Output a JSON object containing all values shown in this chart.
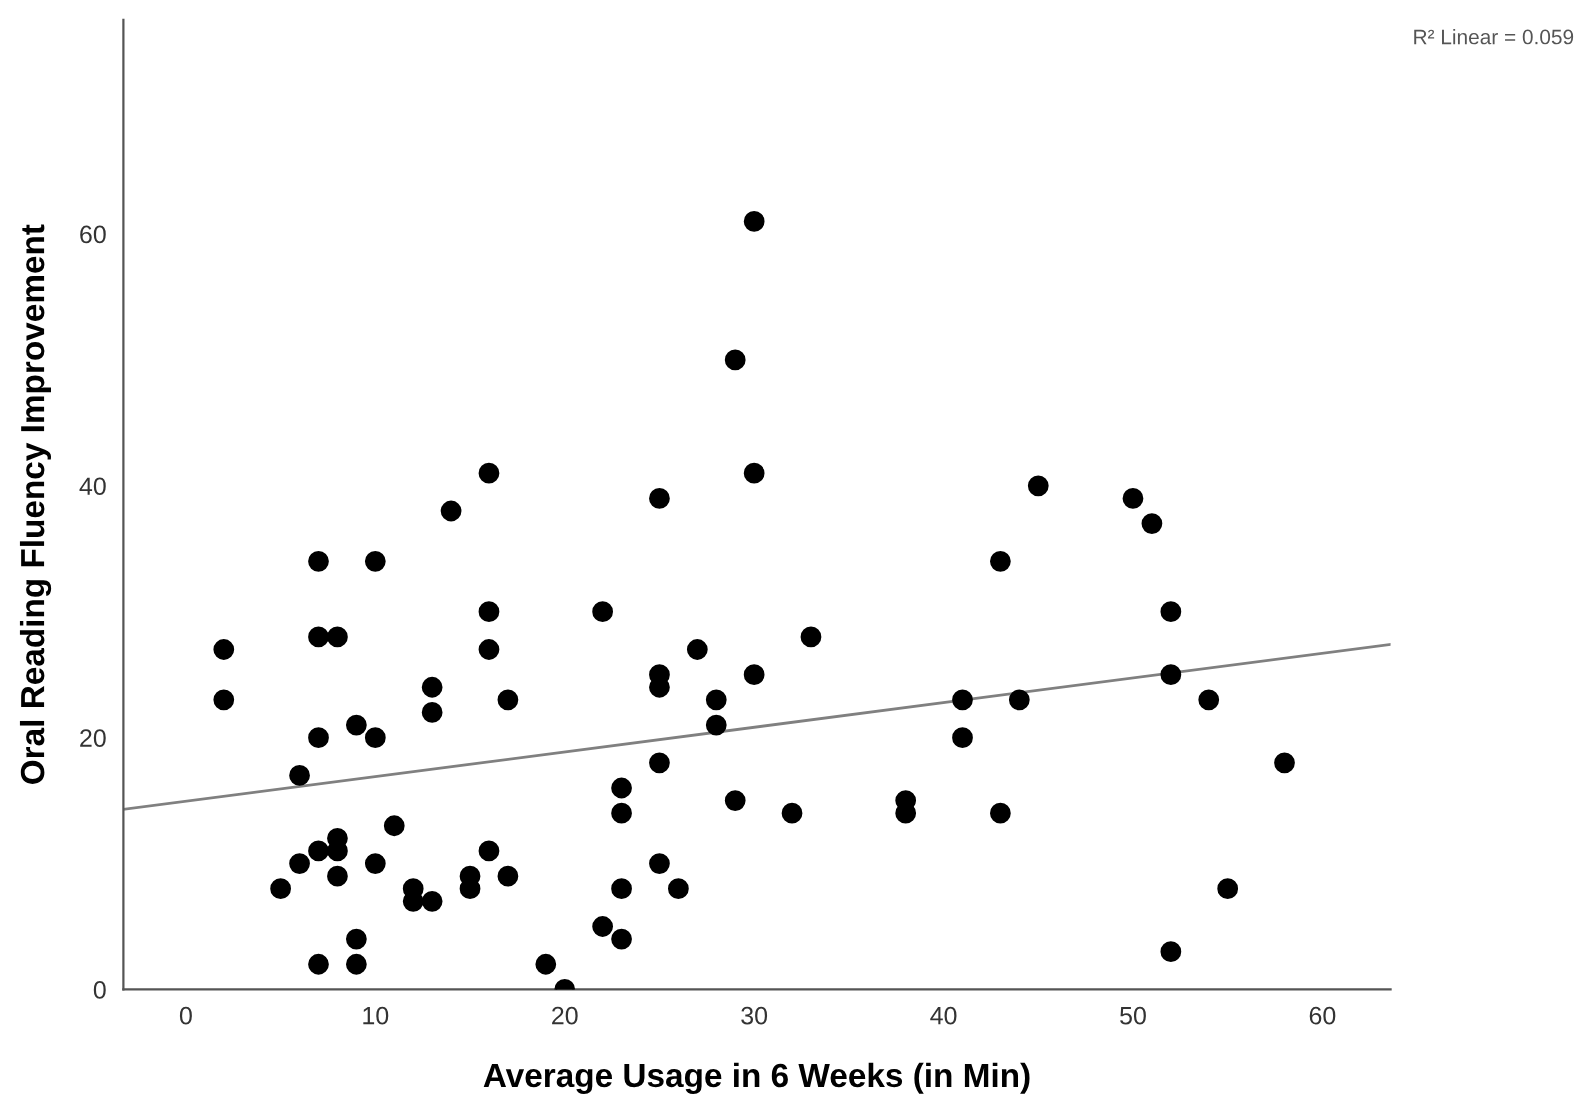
{
  "chart_data": {
    "type": "scatter",
    "xlabel": "Average Usage in 6 Weeks (in Min)",
    "ylabel": "Oral Reading Fluency Improvement",
    "annotations": [
      "R² Linear = 0.059"
    ],
    "xlim": [
      -3.3,
      63.6
    ],
    "ylim": [
      0,
      77
    ],
    "xticks": [
      0,
      10,
      20,
      30,
      40,
      50,
      60
    ],
    "yticks": [
      0,
      20,
      40,
      60
    ],
    "grid": false,
    "marker": "circle",
    "series": [
      {
        "color": "#000000",
        "x": [
          2,
          2,
          5,
          6,
          6,
          7,
          7,
          7,
          7,
          7,
          8,
          8,
          8,
          8,
          9,
          9,
          9,
          10,
          10,
          10,
          11,
          12,
          12,
          13,
          13,
          13,
          14,
          15,
          15,
          16,
          16,
          16,
          16,
          17,
          17,
          19,
          20,
          22,
          22,
          23,
          23,
          23,
          23,
          25,
          25,
          25,
          25,
          25,
          26,
          27,
          28,
          28,
          29,
          29,
          30,
          30,
          30,
          32,
          33,
          38,
          38,
          41,
          41,
          43,
          43,
          44,
          45,
          50,
          51,
          52,
          52,
          52,
          54,
          55,
          58
        ],
        "values": [
          27,
          23,
          8,
          17,
          10,
          34,
          28,
          20,
          11,
          2,
          28,
          12,
          11,
          9,
          21,
          4,
          2,
          34,
          20,
          10,
          13,
          8,
          7,
          24,
          22,
          7,
          38,
          9,
          8,
          41,
          30,
          27,
          11,
          23,
          9,
          2,
          0,
          30,
          5,
          16,
          14,
          8,
          4,
          39,
          25,
          24,
          18,
          10,
          8,
          27,
          23,
          21,
          50,
          15,
          61,
          41,
          25,
          14,
          28,
          15,
          14,
          23,
          20,
          34,
          14,
          23,
          40,
          39,
          37,
          30,
          25,
          3,
          23,
          8,
          18
        ]
      },
      {
        "type": "line",
        "color": "#808080",
        "marker": "none",
        "x": [
          -3.3,
          63.6
        ],
        "values": [
          14.3,
          27.4
        ]
      }
    ]
  }
}
